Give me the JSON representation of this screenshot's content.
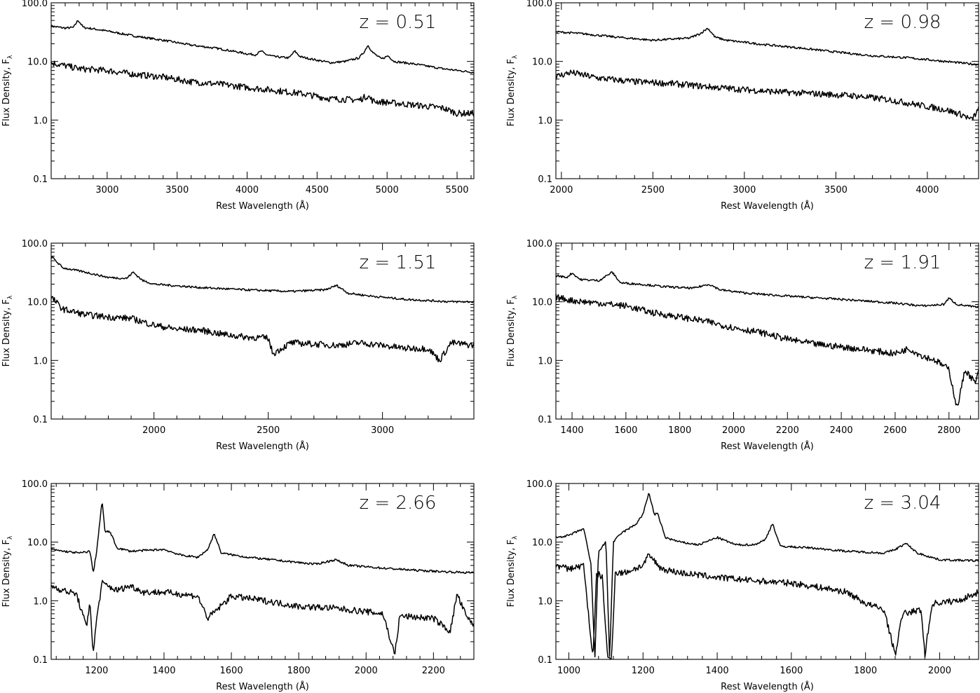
{
  "chart_data": [
    {
      "type": "line",
      "annotation": "z = 0.51",
      "xlabel": "Rest Wavelength (Å)",
      "ylabel": "Flux Density, F",
      "ylabel_subscript": "λ",
      "y_scale": "log",
      "xlim": [
        2600,
        5620
      ],
      "ylim": [
        0.1,
        100
      ],
      "x_ticks": [
        3000,
        3500,
        4000,
        4500,
        5000,
        5500
      ],
      "y_ticks": [
        "0.1",
        "1.0",
        "10.0",
        "100.0"
      ],
      "series": [
        {
          "x": [
            2600,
            2700,
            2760,
            2790,
            2800,
            2830,
            2900,
            3000,
            3200,
            3400,
            3600,
            3800,
            4000,
            4060,
            4100,
            4140,
            4200,
            4300,
            4340,
            4380,
            4500,
            4600,
            4700,
            4800,
            4840,
            4862,
            4900,
            4960,
            5007,
            5050,
            5200,
            5400,
            5620
          ],
          "y": [
            40,
            37,
            38,
            50,
            48,
            38,
            36,
            33,
            27,
            23,
            19,
            16.5,
            13.5,
            13,
            15,
            13,
            12,
            11.5,
            15,
            12,
            10.5,
            9.5,
            10,
            11.5,
            15,
            19,
            14,
            11,
            12.5,
            10,
            9,
            7.5,
            6.5
          ]
        },
        {
          "x": [
            2600,
            2800,
            3000,
            3200,
            3400,
            3600,
            3800,
            4000,
            4200,
            4400,
            4600,
            4800,
            4862,
            4900,
            5000,
            5200,
            5400,
            5500,
            5620
          ],
          "y": [
            9.5,
            7.5,
            7,
            6,
            5.4,
            4.5,
            4.1,
            3.6,
            3.2,
            2.8,
            2.3,
            2.2,
            2.6,
            2.1,
            2,
            1.8,
            1.6,
            1.3,
            1.3
          ]
        }
      ]
    },
    {
      "type": "line",
      "annotation": "z = 0.98",
      "xlabel": "Rest Wavelength (Å)",
      "ylabel": "Flux Density, F",
      "ylabel_subscript": "λ",
      "y_scale": "log",
      "xlim": [
        1970,
        4280
      ],
      "ylim": [
        0.1,
        100
      ],
      "x_ticks": [
        2000,
        2500,
        3000,
        3500,
        4000
      ],
      "y_ticks": [
        "0.1",
        "1.0",
        "10.0",
        "100.0"
      ],
      "series": [
        {
          "x": [
            1970,
            2100,
            2300,
            2500,
            2700,
            2760,
            2800,
            2840,
            2900,
            3100,
            3300,
            3500,
            3700,
            3900,
            4100,
            4280
          ],
          "y": [
            32,
            30,
            26,
            23,
            25,
            30,
            37,
            26,
            23,
            19.5,
            17,
            14.5,
            12.5,
            11.5,
            10,
            8.8
          ]
        },
        {
          "x": [
            1970,
            2050,
            2200,
            2400,
            2600,
            2800,
            3000,
            3200,
            3400,
            3600,
            3800,
            4000,
            4100,
            4200,
            4240,
            4280
          ],
          "y": [
            5.5,
            6.5,
            5.2,
            4.5,
            4.2,
            3.7,
            3.3,
            3,
            2.8,
            2.6,
            2.2,
            1.7,
            1.5,
            1.2,
            1,
            1.5
          ]
        }
      ]
    },
    {
      "type": "line",
      "annotation": "z = 1.51",
      "xlabel": "Rest Wavelength (Å)",
      "ylabel": "Flux Density, F",
      "ylabel_subscript": "λ",
      "y_scale": "log",
      "xlim": [
        1550,
        3400
      ],
      "ylim": [
        0.1,
        100
      ],
      "x_ticks": [
        2000,
        2500,
        3000
      ],
      "y_ticks": [
        "0.1",
        "1.0",
        "10.0",
        "100.0"
      ],
      "series": [
        {
          "x": [
            1550,
            1600,
            1700,
            1800,
            1880,
            1909,
            1950,
            2000,
            2200,
            2400,
            2600,
            2750,
            2800,
            2850,
            2950,
            3100,
            3300,
            3400
          ],
          "y": [
            60,
            38,
            32,
            26,
            25,
            32,
            23,
            20,
            17.5,
            16,
            15,
            16,
            19,
            14,
            12.5,
            11,
            10,
            10
          ]
        },
        {
          "x": [
            1550,
            1600,
            1700,
            1800,
            1900,
            2000,
            2100,
            2200,
            2300,
            2400,
            2500,
            2520,
            2600,
            2700,
            2800,
            2900,
            3000,
            3100,
            3200,
            3250,
            3300,
            3400
          ],
          "y": [
            12,
            7.5,
            6,
            5.5,
            5.2,
            4,
            3.4,
            3.3,
            2.8,
            2.5,
            2.4,
            1.3,
            2,
            1.9,
            1.8,
            2,
            1.8,
            1.6,
            1.6,
            1,
            2,
            1.8
          ]
        }
      ]
    },
    {
      "type": "line",
      "annotation": "z = 1.91",
      "xlabel": "Rest Wavelength (Å)",
      "ylabel": "Flux Density, F",
      "ylabel_subscript": "λ",
      "y_scale": "log",
      "xlim": [
        1340,
        2910
      ],
      "ylim": [
        0.1,
        100
      ],
      "x_ticks": [
        1400,
        1600,
        1800,
        2000,
        2200,
        2400,
        2600,
        2800
      ],
      "y_ticks": [
        "0.1",
        "1.0",
        "10.0",
        "100.0"
      ],
      "series": [
        {
          "x": [
            1340,
            1380,
            1400,
            1430,
            1500,
            1549,
            1580,
            1650,
            1750,
            1850,
            1909,
            1950,
            2050,
            2200,
            2400,
            2600,
            2700,
            2780,
            2800,
            2830,
            2910
          ],
          "y": [
            28,
            26,
            31,
            24,
            23,
            32,
            21,
            20,
            18,
            17,
            20,
            16,
            14,
            12.5,
            11,
            9.5,
            8.5,
            9,
            11.5,
            9,
            8
          ]
        },
        {
          "x": [
            1340,
            1400,
            1500,
            1600,
            1700,
            1800,
            1900,
            2000,
            2100,
            2200,
            2300,
            2400,
            2500,
            2600,
            2650,
            2700,
            2750,
            2800,
            2830,
            2860,
            2900,
            2910
          ],
          "y": [
            12,
            10.5,
            9.5,
            8.5,
            6.5,
            5.5,
            4.6,
            3.6,
            3,
            2.3,
            1.9,
            1.7,
            1.5,
            1.3,
            1.6,
            1.2,
            1,
            0.7,
            0.15,
            0.7,
            0.4,
            0.7
          ]
        }
      ]
    },
    {
      "type": "line",
      "annotation": "z = 2.66",
      "xlabel": "Rest Wavelength (Å)",
      "ylabel": "Flux Density, F",
      "ylabel_subscript": "λ",
      "y_scale": "log",
      "xlim": [
        1065,
        2320
      ],
      "ylim": [
        0.1,
        100
      ],
      "x_ticks": [
        1200,
        1400,
        1600,
        1800,
        2000,
        2200
      ],
      "y_ticks": [
        "0.1",
        "1.0",
        "10.0",
        "100.0"
      ],
      "series": [
        {
          "x": [
            1065,
            1100,
            1150,
            1180,
            1190,
            1200,
            1216,
            1225,
            1240,
            1260,
            1300,
            1400,
            1450,
            1500,
            1530,
            1549,
            1570,
            1650,
            1750,
            1850,
            1909,
            1950,
            2050,
            2150,
            2250,
            2320
          ],
          "y": [
            7.5,
            7,
            6.5,
            7,
            3,
            7,
            50,
            15,
            15,
            8,
            7,
            7.5,
            6,
            5.5,
            7.5,
            14,
            6.5,
            5.5,
            4.8,
            4.2,
            5,
            4,
            3.6,
            3.3,
            3.1,
            3
          ]
        },
        {
          "x": [
            1065,
            1100,
            1140,
            1170,
            1180,
            1190,
            1200,
            1216,
            1260,
            1300,
            1340,
            1400,
            1500,
            1530,
            1600,
            1700,
            1800,
            1900,
            2000,
            2050,
            2085,
            2100,
            2200,
            2250,
            2270,
            2300,
            2320
          ],
          "y": [
            1.8,
            1.5,
            1.3,
            0.35,
            1,
            0.12,
            0.5,
            2,
            1.5,
            1.8,
            1.4,
            1.4,
            1.2,
            0.5,
            1.2,
            1,
            0.8,
            0.75,
            0.65,
            0.6,
            0.12,
            0.55,
            0.5,
            0.3,
            1.3,
            0.5,
            0.4
          ]
        }
      ]
    },
    {
      "type": "line",
      "annotation": "z = 3.04",
      "xlabel": "Rest Wavelength (Å)",
      "ylabel": "Flux Density, F",
      "ylabel_subscript": "λ",
      "y_scale": "log",
      "xlim": [
        965,
        2105
      ],
      "ylim": [
        0.1,
        100
      ],
      "x_ticks": [
        1000,
        1200,
        1400,
        1600,
        1800,
        2000
      ],
      "y_ticks": [
        "0.1",
        "1.0",
        "10.0",
        "100.0"
      ],
      "series": [
        {
          "x": [
            965,
            1000,
            1040,
            1060,
            1070,
            1080,
            1100,
            1110,
            1120,
            1140,
            1180,
            1200,
            1216,
            1230,
            1240,
            1260,
            1300,
            1350,
            1400,
            1450,
            1500,
            1530,
            1549,
            1570,
            1650,
            1750,
            1850,
            1880,
            1909,
            1940,
            2000,
            2105
          ],
          "y": [
            12,
            13,
            17,
            4,
            0.1,
            7,
            10,
            0.1,
            10,
            14,
            20,
            30,
            70,
            30,
            30,
            12,
            10,
            9,
            12,
            9,
            9,
            11,
            21,
            8.5,
            8,
            7,
            6.5,
            7.5,
            9.5,
            6.5,
            5,
            4.8
          ]
        },
        {
          "x": [
            965,
            1000,
            1040,
            1065,
            1075,
            1090,
            1105,
            1115,
            1125,
            1150,
            1200,
            1216,
            1250,
            1300,
            1400,
            1500,
            1600,
            1700,
            1750,
            1800,
            1850,
            1880,
            1900,
            1950,
            1960,
            1980,
            2050,
            2105
          ],
          "y": [
            4,
            3.5,
            4,
            0.1,
            3,
            2.5,
            0.1,
            0.1,
            3,
            3,
            4,
            6,
            3.5,
            3,
            2.5,
            2.2,
            2,
            1.6,
            1.4,
            0.9,
            0.7,
            0.12,
            0.6,
            0.7,
            0.12,
            0.9,
            1,
            1.4
          ]
        }
      ]
    }
  ]
}
